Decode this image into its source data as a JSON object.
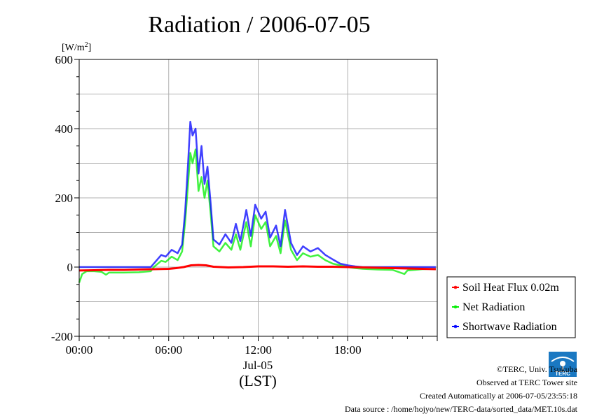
{
  "chart_data": {
    "type": "line",
    "title": "Radiation / 2006-07-05",
    "ylabel": "[W/m",
    "ylabel_sup": "2",
    "ylabel_close": "]",
    "xlabel_date": "Jul-05",
    "xlabel_unit": "(LST)",
    "xlim": [
      0,
      24
    ],
    "ylim": [
      -200,
      600
    ],
    "yticks": [
      600,
      400,
      200,
      0,
      -200
    ],
    "xticks": [
      0,
      6,
      12,
      18
    ],
    "xtick_labels": [
      "00:00",
      "06:00",
      "12:00",
      "18:00"
    ],
    "grid": true,
    "legend_position": "right",
    "series": [
      {
        "name": "Soil Heat Flux 0.02m",
        "color": "#ff0000",
        "x": [
          0,
          1,
          2,
          3,
          4,
          5,
          6,
          6.5,
          7,
          7.5,
          8,
          8.5,
          9,
          10,
          11,
          12,
          13,
          14,
          15,
          16,
          17,
          18,
          19,
          20,
          21,
          22,
          23,
          23.9
        ],
        "y": [
          -10,
          -9,
          -8,
          -8,
          -7,
          -6,
          -5,
          -3,
          0,
          5,
          6,
          5,
          1,
          -1,
          0,
          2,
          2,
          1,
          2,
          1,
          1,
          0,
          -1,
          -2,
          -3,
          -4,
          -5,
          -6
        ]
      },
      {
        "name": "Net Radiation",
        "color": "#00ee00",
        "x": [
          0,
          0.2,
          0.5,
          1,
          1.5,
          1.8,
          2,
          3,
          4,
          4.8,
          5,
          5.5,
          5.8,
          6.2,
          6.6,
          6.9,
          7.1,
          7.3,
          7.45,
          7.6,
          7.8,
          8.0,
          8.2,
          8.4,
          8.6,
          8.8,
          9.0,
          9.4,
          9.8,
          10.2,
          10.5,
          10.8,
          11.2,
          11.5,
          11.8,
          12.2,
          12.5,
          12.8,
          13.2,
          13.5,
          13.8,
          14.2,
          14.6,
          15.0,
          15.5,
          16.0,
          16.5,
          17.0,
          17.5,
          18.0,
          18.5,
          19.0,
          20,
          21,
          21.8,
          22,
          22.5,
          23,
          23.9
        ],
        "y": [
          -45,
          -20,
          -12,
          -12,
          -14,
          -22,
          -16,
          -16,
          -15,
          -12,
          0,
          18,
          15,
          30,
          20,
          45,
          130,
          240,
          330,
          300,
          340,
          220,
          260,
          200,
          250,
          160,
          60,
          45,
          70,
          50,
          95,
          50,
          130,
          60,
          150,
          110,
          130,
          60,
          90,
          40,
          135,
          50,
          20,
          40,
          30,
          35,
          20,
          10,
          5,
          0,
          -3,
          -5,
          -7,
          -8,
          -20,
          -10,
          -8,
          -6,
          -5
        ]
      },
      {
        "name": "Shortwave Radiation",
        "color": "#0000ff",
        "x": [
          0,
          1,
          2,
          3,
          4,
          4.8,
          5,
          5.5,
          5.8,
          6.2,
          6.6,
          6.9,
          7.1,
          7.3,
          7.45,
          7.6,
          7.8,
          8.0,
          8.2,
          8.4,
          8.6,
          8.8,
          9.0,
          9.4,
          9.8,
          10.2,
          10.5,
          10.8,
          11.2,
          11.5,
          11.8,
          12.2,
          12.5,
          12.8,
          13.2,
          13.5,
          13.8,
          14.2,
          14.6,
          15.0,
          15.5,
          16.0,
          16.5,
          17.0,
          17.5,
          18.0,
          18.5,
          19.0,
          20,
          21,
          22,
          23,
          23.9
        ],
        "y": [
          0,
          0,
          0,
          0,
          0,
          0,
          10,
          35,
          30,
          50,
          40,
          65,
          160,
          300,
          420,
          380,
          400,
          270,
          350,
          240,
          290,
          190,
          80,
          65,
          95,
          70,
          125,
          75,
          165,
          90,
          180,
          140,
          160,
          85,
          120,
          60,
          165,
          70,
          35,
          60,
          45,
          55,
          35,
          22,
          10,
          5,
          2,
          0,
          0,
          0,
          0,
          0,
          0
        ]
      }
    ]
  },
  "footer": {
    "copyright": "©TERC, Univ. Tsukuba",
    "site": "Observed at TERC Tower site",
    "created": "Created Automatically at 2006-07-05/23:55:18",
    "source": "Data source : /home/hojyo/new/TERC-data/sorted_data/MET.10s.dat",
    "logo_text": "TERC"
  }
}
